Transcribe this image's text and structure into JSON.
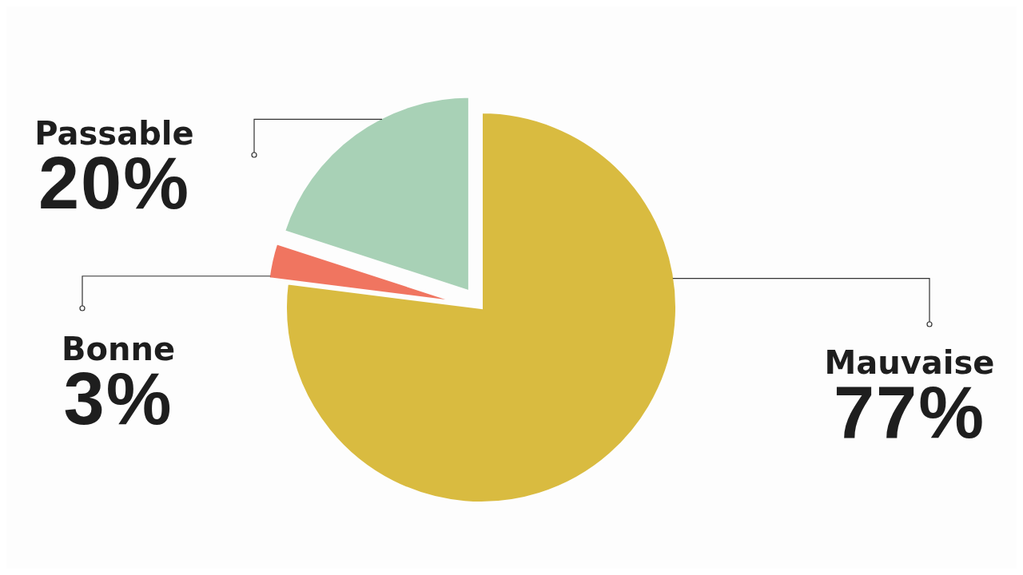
{
  "chart_data": {
    "type": "pie",
    "categories": [
      "Mauvaise",
      "Bonne",
      "Passable"
    ],
    "values": [
      77,
      3,
      20
    ],
    "value_labels": [
      "77%",
      "3%",
      "20%"
    ],
    "colors": [
      "#d9bb40",
      "#f07560",
      "#a8d1b6"
    ]
  }
}
